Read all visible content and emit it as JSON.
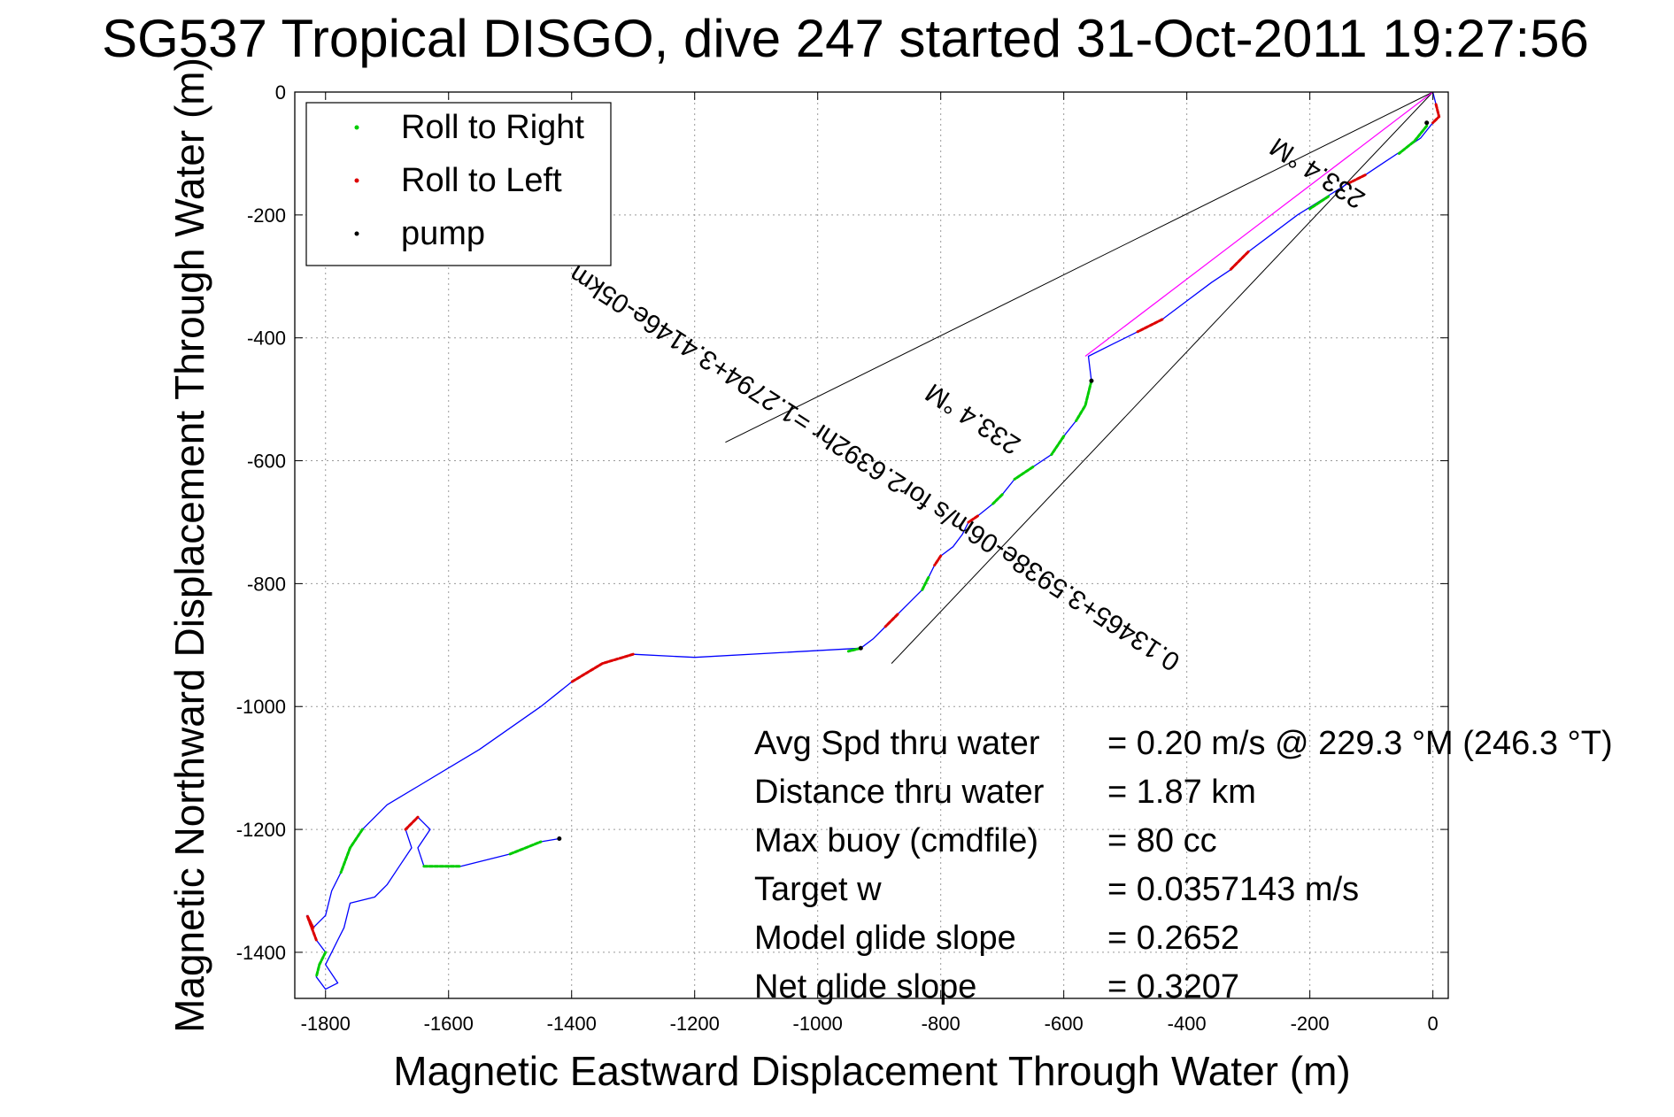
{
  "chart_data": {
    "type": "line",
    "title": "SG537 Tropical DISGO, dive 247 started 31-Oct-2011 19:27:56",
    "xlabel": "Magnetic Eastward Displacement Through Water (m)",
    "ylabel": "Magnetic Northward Displacement Through Water (m)",
    "xlim": [
      -1850,
      25
    ],
    "ylim": [
      -1475,
      0
    ],
    "xticks": [
      -1800,
      -1600,
      -1400,
      -1200,
      -1000,
      -800,
      -600,
      -400,
      -200,
      0
    ],
    "yticks": [
      0,
      -200,
      -400,
      -600,
      -800,
      -1000,
      -1200,
      -1400
    ],
    "grid": true,
    "legend": {
      "placement": "top-left",
      "entries": [
        {
          "label": "Roll to Right",
          "color": "#00cc00"
        },
        {
          "label": "Roll to Left",
          "color": "#dd0000"
        },
        {
          "label": "pump",
          "color": "#000000"
        }
      ]
    },
    "track": {
      "color": "#0000ff",
      "points": [
        [
          0,
          0
        ],
        [
          5,
          -20
        ],
        [
          10,
          -40
        ],
        [
          0,
          -50
        ],
        [
          -20,
          -75
        ],
        [
          -50,
          -95
        ],
        [
          -80,
          -115
        ],
        [
          -110,
          -135
        ],
        [
          -140,
          -150
        ],
        [
          -180,
          -175
        ],
        [
          -220,
          -200
        ],
        [
          -260,
          -230
        ],
        [
          -300,
          -260
        ],
        [
          -330,
          -290
        ],
        [
          -360,
          -310
        ],
        [
          -400,
          -340
        ],
        [
          -440,
          -370
        ],
        [
          -480,
          -390
        ],
        [
          -520,
          -410
        ],
        [
          -560,
          -430
        ],
        [
          -555,
          -470
        ],
        [
          -565,
          -510
        ],
        [
          -580,
          -535
        ],
        [
          -600,
          -560
        ],
        [
          -620,
          -590
        ],
        [
          -650,
          -610
        ],
        [
          -680,
          -630
        ],
        [
          -700,
          -655
        ],
        [
          -715,
          -670
        ],
        [
          -740,
          -690
        ],
        [
          -755,
          -700
        ],
        [
          -765,
          -720
        ],
        [
          -780,
          -740
        ],
        [
          -800,
          -755
        ],
        [
          -810,
          -770
        ],
        [
          -820,
          -790
        ],
        [
          -830,
          -810
        ],
        [
          -850,
          -830
        ],
        [
          -870,
          -850
        ],
        [
          -890,
          -870
        ],
        [
          -910,
          -890
        ],
        [
          -930,
          -905
        ],
        [
          -1200,
          -920
        ],
        [
          -1300,
          -915
        ],
        [
          -1350,
          -930
        ],
        [
          -1400,
          -960
        ],
        [
          -1450,
          -1000
        ],
        [
          -1550,
          -1070
        ],
        [
          -1650,
          -1130
        ],
        [
          -1700,
          -1160
        ],
        [
          -1740,
          -1200
        ],
        [
          -1760,
          -1230
        ],
        [
          -1775,
          -1270
        ],
        [
          -1790,
          -1300
        ],
        [
          -1800,
          -1340
        ],
        [
          -1820,
          -1360
        ],
        [
          -1830,
          -1340
        ],
        [
          -1815,
          -1380
        ],
        [
          -1800,
          -1400
        ],
        [
          -1810,
          -1420
        ],
        [
          -1815,
          -1440
        ],
        [
          -1800,
          -1460
        ],
        [
          -1780,
          -1450
        ],
        [
          -1800,
          -1420
        ],
        [
          -1790,
          -1400
        ],
        [
          -1780,
          -1380
        ],
        [
          -1770,
          -1360
        ],
        [
          -1760,
          -1320
        ],
        [
          -1720,
          -1310
        ],
        [
          -1700,
          -1290
        ],
        [
          -1680,
          -1260
        ],
        [
          -1660,
          -1230
        ],
        [
          -1670,
          -1200
        ],
        [
          -1650,
          -1180
        ],
        [
          -1630,
          -1200
        ],
        [
          -1650,
          -1230
        ],
        [
          -1640,
          -1260
        ],
        [
          -1580,
          -1260
        ],
        [
          -1500,
          -1240
        ],
        [
          -1450,
          -1220
        ],
        [
          -1420,
          -1215
        ]
      ]
    },
    "roll_right_segments": [
      [
        [
          -10,
          -55
        ],
        [
          -30,
          -80
        ],
        [
          -55,
          -100
        ]
      ],
      [
        [
          -170,
          -170
        ],
        [
          -200,
          -190
        ]
      ],
      [
        [
          -555,
          -470
        ],
        [
          -565,
          -510
        ],
        [
          -580,
          -535
        ]
      ],
      [
        [
          -600,
          -560
        ],
        [
          -620,
          -590
        ]
      ],
      [
        [
          -650,
          -610
        ],
        [
          -680,
          -630
        ]
      ],
      [
        [
          -700,
          -655
        ],
        [
          -715,
          -670
        ]
      ],
      [
        [
          -820,
          -790
        ],
        [
          -830,
          -810
        ]
      ],
      [
        [
          -930,
          -905
        ],
        [
          -950,
          -910
        ]
      ],
      [
        [
          -1740,
          -1200
        ],
        [
          -1760,
          -1230
        ],
        [
          -1775,
          -1270
        ]
      ],
      [
        [
          -1800,
          -1400
        ],
        [
          -1810,
          -1420
        ],
        [
          -1815,
          -1440
        ]
      ],
      [
        [
          -1640,
          -1260
        ],
        [
          -1580,
          -1260
        ]
      ],
      [
        [
          -1500,
          -1240
        ],
        [
          -1450,
          -1220
        ]
      ]
    ],
    "roll_left_segments": [
      [
        [
          5,
          -20
        ],
        [
          10,
          -40
        ],
        [
          0,
          -50
        ]
      ],
      [
        [
          -110,
          -135
        ],
        [
          -140,
          -150
        ]
      ],
      [
        [
          -300,
          -260
        ],
        [
          -330,
          -290
        ]
      ],
      [
        [
          -440,
          -370
        ],
        [
          -480,
          -390
        ]
      ],
      [
        [
          -740,
          -690
        ],
        [
          -755,
          -700
        ]
      ],
      [
        [
          -800,
          -755
        ],
        [
          -810,
          -770
        ]
      ],
      [
        [
          -870,
          -850
        ],
        [
          -890,
          -870
        ]
      ],
      [
        [
          -1300,
          -915
        ],
        [
          -1350,
          -930
        ],
        [
          -1400,
          -960
        ]
      ],
      [
        [
          -1820,
          -1360
        ],
        [
          -1830,
          -1340
        ],
        [
          -1815,
          -1380
        ]
      ],
      [
        [
          -1670,
          -1200
        ],
        [
          -1650,
          -1180
        ]
      ]
    ],
    "pump_points": [
      [
        -10,
        -50
      ],
      [
        -555,
        -470
      ],
      [
        -930,
        -905
      ],
      [
        -1420,
        -1215
      ]
    ],
    "heading_line": {
      "color": "#ff00ff",
      "from": [
        0,
        0
      ],
      "to": [
        -565,
        -430
      ]
    },
    "rays": [
      {
        "from": [
          0,
          0
        ],
        "to": [
          -1150,
          -570
        ]
      },
      {
        "from": [
          0,
          0
        ],
        "to": [
          -880,
          -930
        ]
      }
    ],
    "annotations": [
      {
        "text": "0.13465+3.5938e-06m/s for2.6392hr =1.2794+3.4146e-05km",
        "x": -900,
        "y": -600,
        "rotation": 33
      },
      {
        "text": "233.4 °M",
        "x": -180,
        "y": -120,
        "rotation": 33
      },
      {
        "text": "233.4 °M",
        "x": -740,
        "y": -520,
        "rotation": 33
      }
    ]
  },
  "stats": [
    {
      "label": "Avg Spd thru water",
      "value": "=  0.20 m/s @ 229.3 °M (246.3 °T)"
    },
    {
      "label": "Distance thru water",
      "value": "=  1.87 km"
    },
    {
      "label": "Max buoy (cmdfile)",
      "value": "= 80 cc"
    },
    {
      "label": "Target w",
      "value": "= 0.0357143 m/s"
    },
    {
      "label": "Model glide slope",
      "value": "= 0.2652"
    },
    {
      "label": "Net glide slope",
      "value": "= 0.3207"
    }
  ]
}
